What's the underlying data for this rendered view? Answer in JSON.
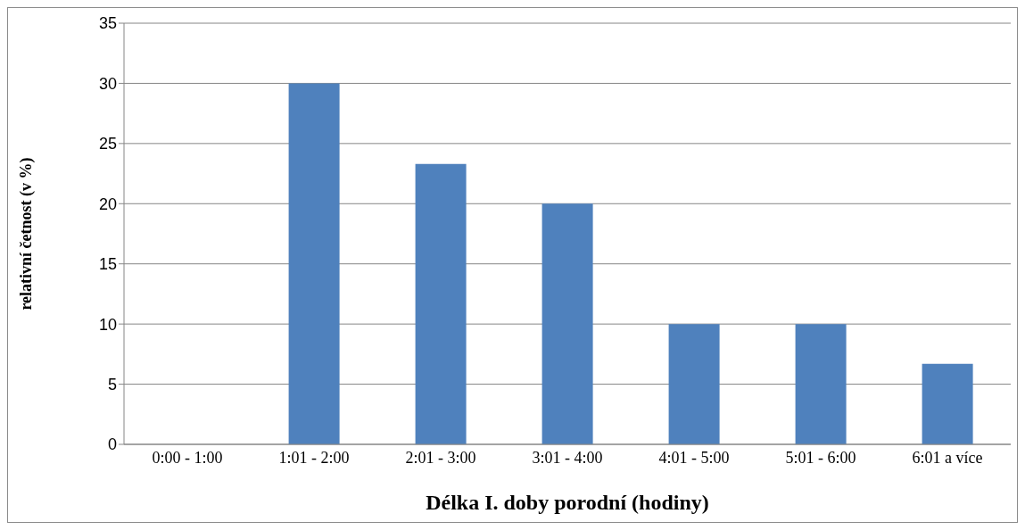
{
  "chart_data": {
    "type": "bar",
    "xlabel": "Délka I. doby porodní (hodiny)",
    "ylabel": "relativní četnost (v %)",
    "categories": [
      "0:00 - 1:00",
      "1:01 - 2:00",
      "2:01 - 3:00",
      "3:01 - 4:00",
      "4:01 - 5:00",
      "5:01 - 6:00",
      "6:01 a více"
    ],
    "values": [
      0,
      30,
      23.3,
      20,
      10,
      10,
      6.7
    ],
    "color": "#4f81bd",
    "ylim": [
      0,
      35
    ],
    "yticks": [
      0,
      5,
      10,
      15,
      20,
      25,
      30,
      35
    ],
    "grid": "y",
    "legend": false
  }
}
